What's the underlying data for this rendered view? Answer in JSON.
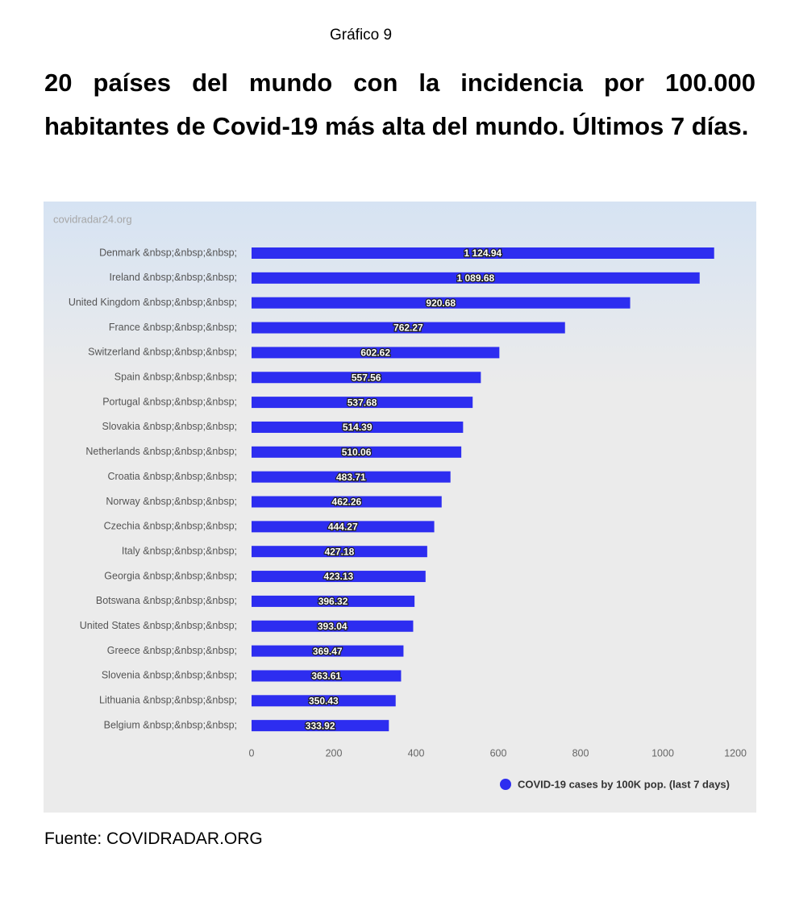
{
  "chart_data": {
    "type": "bar",
    "orientation": "horizontal",
    "figure_label": "Gráfico 9",
    "title": "20 países del mundo con la incidencia por 100.000 habitantes de Covid-19 más alta del mundo. Últimos 7 días.",
    "watermark": "covidradar24.org",
    "source": "Fuente: COVIDRADAR.ORG",
    "categories": [
      "Denmark &nbsp;&nbsp;&nbsp;",
      "Ireland &nbsp;&nbsp;&nbsp;",
      "United Kingdom &nbsp;&nbsp;&nbsp;",
      "France &nbsp;&nbsp;&nbsp;",
      "Switzerland &nbsp;&nbsp;&nbsp;",
      "Spain &nbsp;&nbsp;&nbsp;",
      "Portugal &nbsp;&nbsp;&nbsp;",
      "Slovakia &nbsp;&nbsp;&nbsp;",
      "Netherlands &nbsp;&nbsp;&nbsp;",
      "Croatia &nbsp;&nbsp;&nbsp;",
      "Norway &nbsp;&nbsp;&nbsp;",
      "Czechia &nbsp;&nbsp;&nbsp;",
      "Italy &nbsp;&nbsp;&nbsp;",
      "Georgia &nbsp;&nbsp;&nbsp;",
      "Botswana &nbsp;&nbsp;&nbsp;",
      "United States &nbsp;&nbsp;&nbsp;",
      "Greece &nbsp;&nbsp;&nbsp;",
      "Slovenia &nbsp;&nbsp;&nbsp;",
      "Lithuania &nbsp;&nbsp;&nbsp;",
      "Belgium &nbsp;&nbsp;&nbsp;"
    ],
    "series": [
      {
        "name": "COVID-19 cases by 100K pop. (last 7 days)",
        "color": "#2d2df0",
        "values": [
          1124.94,
          1089.68,
          920.68,
          762.27,
          602.62,
          557.56,
          537.68,
          514.39,
          510.06,
          483.71,
          462.26,
          444.27,
          427.18,
          423.13,
          396.32,
          393.04,
          369.47,
          363.61,
          350.43,
          333.92
        ],
        "value_labels": [
          "1 124.94",
          "1 089.68",
          "920.68",
          "762.27",
          "602.62",
          "557.56",
          "537.68",
          "514.39",
          "510.06",
          "483.71",
          "462.26",
          "444.27",
          "427.18",
          "423.13",
          "396.32",
          "393.04",
          "369.47",
          "363.61",
          "350.43",
          "333.92"
        ]
      }
    ],
    "xlim": [
      0,
      1200
    ],
    "xticks": [
      0,
      200,
      400,
      600,
      800,
      1000,
      1200
    ],
    "legend": "bottom-right"
  }
}
